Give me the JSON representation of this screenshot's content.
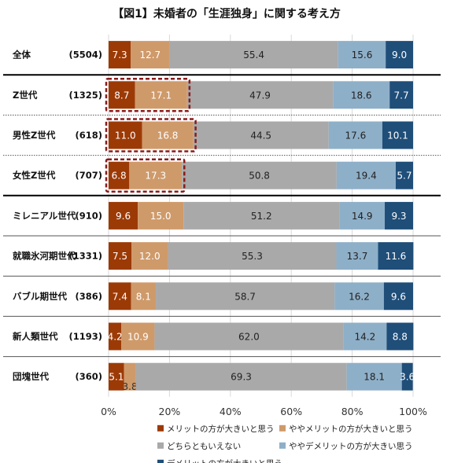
{
  "chart_data": {
    "type": "bar",
    "orientation": "horizontal",
    "stacked": true,
    "title": "【図1】未婚者の「生涯独身」に関する考え方",
    "categories": [
      "全体",
      "Z世代",
      "男性Z世代",
      "女性Z世代",
      "ミレニアル世代",
      "就職氷河期世代",
      "バブル期世代",
      "新人類世代",
      "団塊世代"
    ],
    "counts": [
      "(5504)",
      "(1325)",
      "(618)",
      "(707)",
      "(910)",
      "(1331)",
      "(386)",
      "(1193)",
      "(360)"
    ],
    "series": [
      {
        "name": "メリットの方が大きいと思う",
        "color": "#9c3a06",
        "values": [
          7.3,
          8.7,
          11.0,
          6.8,
          9.6,
          7.5,
          7.4,
          4.2,
          5.1
        ]
      },
      {
        "name": "ややメリットの方が大きいと思う",
        "color": "#cf9a6a",
        "values": [
          12.7,
          17.1,
          16.8,
          17.3,
          15.0,
          12.0,
          8.1,
          10.9,
          3.8
        ]
      },
      {
        "name": "どちらともいえない",
        "color": "#a9a9a9",
        "values": [
          55.4,
          47.9,
          44.5,
          50.8,
          51.2,
          55.3,
          58.7,
          62.0,
          69.3
        ]
      },
      {
        "name": "ややデメリットの方が大きい思う",
        "color": "#8eafc8",
        "values": [
          15.6,
          18.6,
          17.6,
          19.4,
          14.9,
          13.7,
          16.2,
          14.2,
          18.1
        ]
      },
      {
        "name": "デメリットの方が大きいと思う",
        "color": "#1f4e79",
        "values": [
          9.0,
          7.7,
          10.1,
          5.7,
          9.3,
          11.6,
          9.6,
          8.8,
          3.6
        ]
      }
    ],
    "value_labels": [
      [
        "7.3",
        "12.7",
        "55.4",
        "15.6",
        "9.0"
      ],
      [
        "8.7",
        "17.1",
        "47.9",
        "18.6",
        "7.7"
      ],
      [
        "11.0",
        "16.8",
        "44.5",
        "17.6",
        "10.1"
      ],
      [
        "6.8",
        "17.3",
        "50.8",
        "19.4",
        "5.7"
      ],
      [
        "9.6",
        "15.0",
        "51.2",
        "14.9",
        "9.3"
      ],
      [
        "7.5",
        "12.0",
        "55.3",
        "13.7",
        "11.6"
      ],
      [
        "7.4",
        "8.1",
        "58.7",
        "16.2",
        "9.6"
      ],
      [
        "4.2",
        "10.9",
        "62.0",
        "14.2",
        "8.8"
      ],
      [
        "5.1",
        "3.8",
        "69.3",
        "18.1",
        "3.6"
      ]
    ],
    "xaxis": {
      "ticks": [
        0,
        20,
        40,
        60,
        80,
        100
      ],
      "tick_labels": [
        "0%",
        "20%",
        "40%",
        "60%",
        "80%",
        "100%"
      ],
      "range": [
        0,
        100
      ]
    },
    "highlighted_rows": [
      "Z世代",
      "男性Z世代",
      "女性Z世代"
    ],
    "legend_position": "bottom",
    "grid": true
  }
}
